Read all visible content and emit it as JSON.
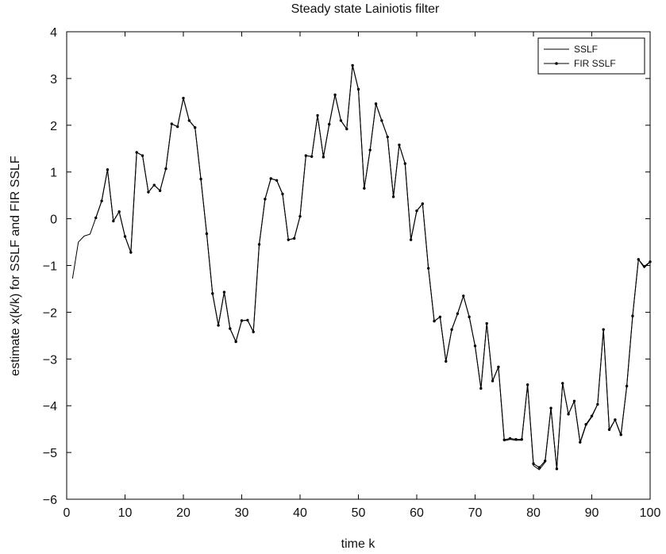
{
  "chart_data": {
    "type": "line",
    "title": "Steady state Lainiotis filter",
    "xlabel": "time k",
    "ylabel": "estimate x(k/k) for SSLF and FIR SSLF",
    "xlim": [
      0,
      100
    ],
    "ylim": [
      -6,
      4
    ],
    "xticks": [
      0,
      10,
      20,
      30,
      40,
      50,
      60,
      70,
      80,
      90,
      100
    ],
    "yticks": [
      -6,
      -5,
      -4,
      -3,
      -2,
      -1,
      0,
      1,
      2,
      3,
      4
    ],
    "xtick_labels": [
      "0",
      "10",
      "20",
      "30",
      "40",
      "50",
      "60",
      "70",
      "80",
      "90",
      "100"
    ],
    "ytick_labels": [
      "−6",
      "−5",
      "−4",
      "−3",
      "−2",
      "−1",
      "0",
      "1",
      "2",
      "3",
      "4"
    ],
    "grid": false,
    "legend_position": "top-right",
    "x": [
      1,
      2,
      3,
      4,
      5,
      6,
      7,
      8,
      9,
      10,
      11,
      12,
      13,
      14,
      15,
      16,
      17,
      18,
      19,
      20,
      21,
      22,
      23,
      24,
      25,
      26,
      27,
      28,
      29,
      30,
      31,
      32,
      33,
      34,
      35,
      36,
      37,
      38,
      39,
      40,
      41,
      42,
      43,
      44,
      45,
      46,
      47,
      48,
      49,
      50,
      51,
      52,
      53,
      54,
      55,
      56,
      57,
      58,
      59,
      60,
      61,
      62,
      63,
      64,
      65,
      66,
      67,
      68,
      69,
      70,
      71,
      72,
      73,
      74,
      75,
      76,
      77,
      78,
      79,
      80,
      81,
      82,
      83,
      84,
      85,
      86,
      87,
      88,
      89,
      90,
      91,
      92,
      93,
      94,
      95,
      96,
      97,
      98,
      99,
      100
    ],
    "series": [
      {
        "name": "SSLF",
        "marker": "none",
        "color": "#000000",
        "values": [
          -1.28,
          -0.5,
          -0.37,
          -0.33,
          0.02,
          0.38,
          1.05,
          -0.05,
          0.15,
          -0.38,
          -0.72,
          1.42,
          1.35,
          0.57,
          0.72,
          0.6,
          1.07,
          2.03,
          1.97,
          2.58,
          2.1,
          1.95,
          0.85,
          -0.32,
          -1.6,
          -2.28,
          -1.57,
          -2.35,
          -2.63,
          -2.18,
          -2.17,
          -2.42,
          -0.55,
          0.42,
          0.86,
          0.82,
          0.53,
          -0.45,
          -0.42,
          0.05,
          1.35,
          1.33,
          2.21,
          1.32,
          2.02,
          2.65,
          2.1,
          1.92,
          3.28,
          2.77,
          0.65,
          1.47,
          2.46,
          2.1,
          1.75,
          0.47,
          1.58,
          1.18,
          -0.45,
          0.17,
          0.32,
          -1.06,
          -2.19,
          -2.1,
          -3.05,
          -2.37,
          -2.03,
          -1.65,
          -2.1,
          -2.72,
          -3.63,
          -2.24,
          -3.47,
          -3.17,
          -4.75,
          -4.72,
          -4.74,
          -4.74,
          -3.55,
          -5.28,
          -5.37,
          -5.21,
          -4.05,
          -5.35,
          -3.52,
          -4.18,
          -3.9,
          -4.8,
          -4.42,
          -4.24,
          -3.97,
          -2.37,
          -4.53,
          -4.3,
          -4.64,
          -3.58,
          -2.08,
          -0.87,
          -1.05,
          -0.92
        ]
      },
      {
        "name": "FIR SSLF",
        "marker": "dot",
        "color": "#000000",
        "values": [
          null,
          null,
          null,
          null,
          0.02,
          0.38,
          1.05,
          -0.05,
          0.15,
          -0.38,
          -0.72,
          1.42,
          1.35,
          0.57,
          0.72,
          0.6,
          1.07,
          2.03,
          1.97,
          2.58,
          2.1,
          1.95,
          0.85,
          -0.32,
          -1.6,
          -2.28,
          -1.57,
          -2.35,
          -2.63,
          -2.18,
          -2.17,
          -2.42,
          -0.55,
          0.42,
          0.86,
          0.82,
          0.53,
          -0.45,
          -0.42,
          0.05,
          1.35,
          1.33,
          2.21,
          1.32,
          2.02,
          2.65,
          2.1,
          1.92,
          3.28,
          2.77,
          0.65,
          1.47,
          2.46,
          2.1,
          1.75,
          0.47,
          1.58,
          1.18,
          -0.45,
          0.17,
          0.32,
          -1.06,
          -2.19,
          -2.1,
          -3.05,
          -2.37,
          -2.03,
          -1.65,
          -2.1,
          -2.72,
          -3.63,
          -2.24,
          -3.47,
          -3.17,
          -4.73,
          -4.7,
          -4.72,
          -4.72,
          -3.55,
          -5.24,
          -5.32,
          -5.18,
          -4.05,
          -5.35,
          -3.52,
          -4.18,
          -3.9,
          -4.78,
          -4.4,
          -4.22,
          -3.97,
          -2.37,
          -4.51,
          -4.3,
          -4.62,
          -3.58,
          -2.08,
          -0.87,
          -1.02,
          -0.92
        ]
      }
    ]
  }
}
